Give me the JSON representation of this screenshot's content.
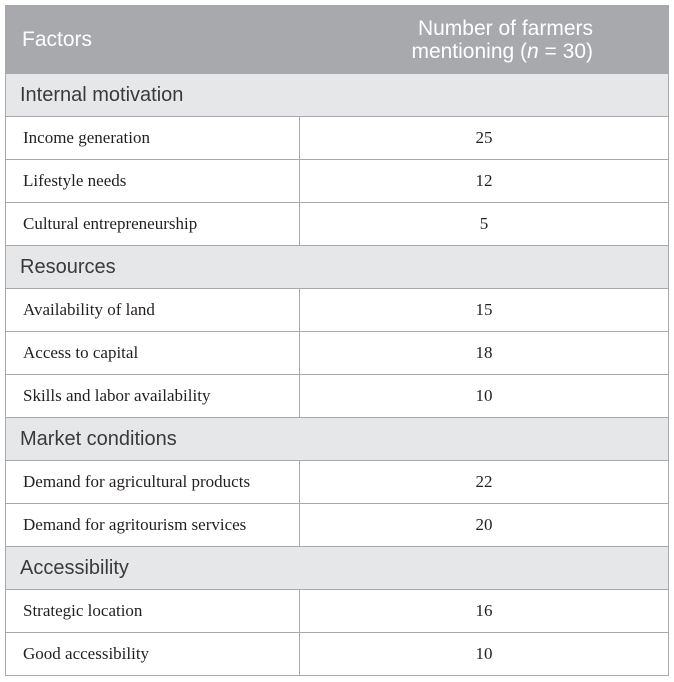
{
  "table": {
    "header": {
      "col1": "Factors",
      "col2_line1": "Number of farmers",
      "col2_line2_prefix": "mentioning (",
      "col2_line2_var": "n",
      "col2_line2_suffix": " = 30)"
    },
    "sections": [
      {
        "title": "Internal motivation",
        "rows": [
          {
            "factor": "Income generation",
            "count": "25"
          },
          {
            "factor": "Lifestyle needs",
            "count": "12"
          },
          {
            "factor": "Cultural entrepreneurship",
            "count": "5"
          }
        ]
      },
      {
        "title": "Resources",
        "rows": [
          {
            "factor": "Availability of land",
            "count": "15"
          },
          {
            "factor": "Access to capital",
            "count": "18"
          },
          {
            "factor": "Skills and labor availability",
            "count": "10"
          }
        ]
      },
      {
        "title": "Market conditions",
        "rows": [
          {
            "factor": "Demand for agricultural products",
            "count": "22"
          },
          {
            "factor": "Demand for agritourism services",
            "count": "20"
          }
        ]
      },
      {
        "title": "Accessibility",
        "rows": [
          {
            "factor": "Strategic location",
            "count": "16"
          },
          {
            "factor": "Good accessibility",
            "count": "10"
          }
        ]
      }
    ]
  }
}
